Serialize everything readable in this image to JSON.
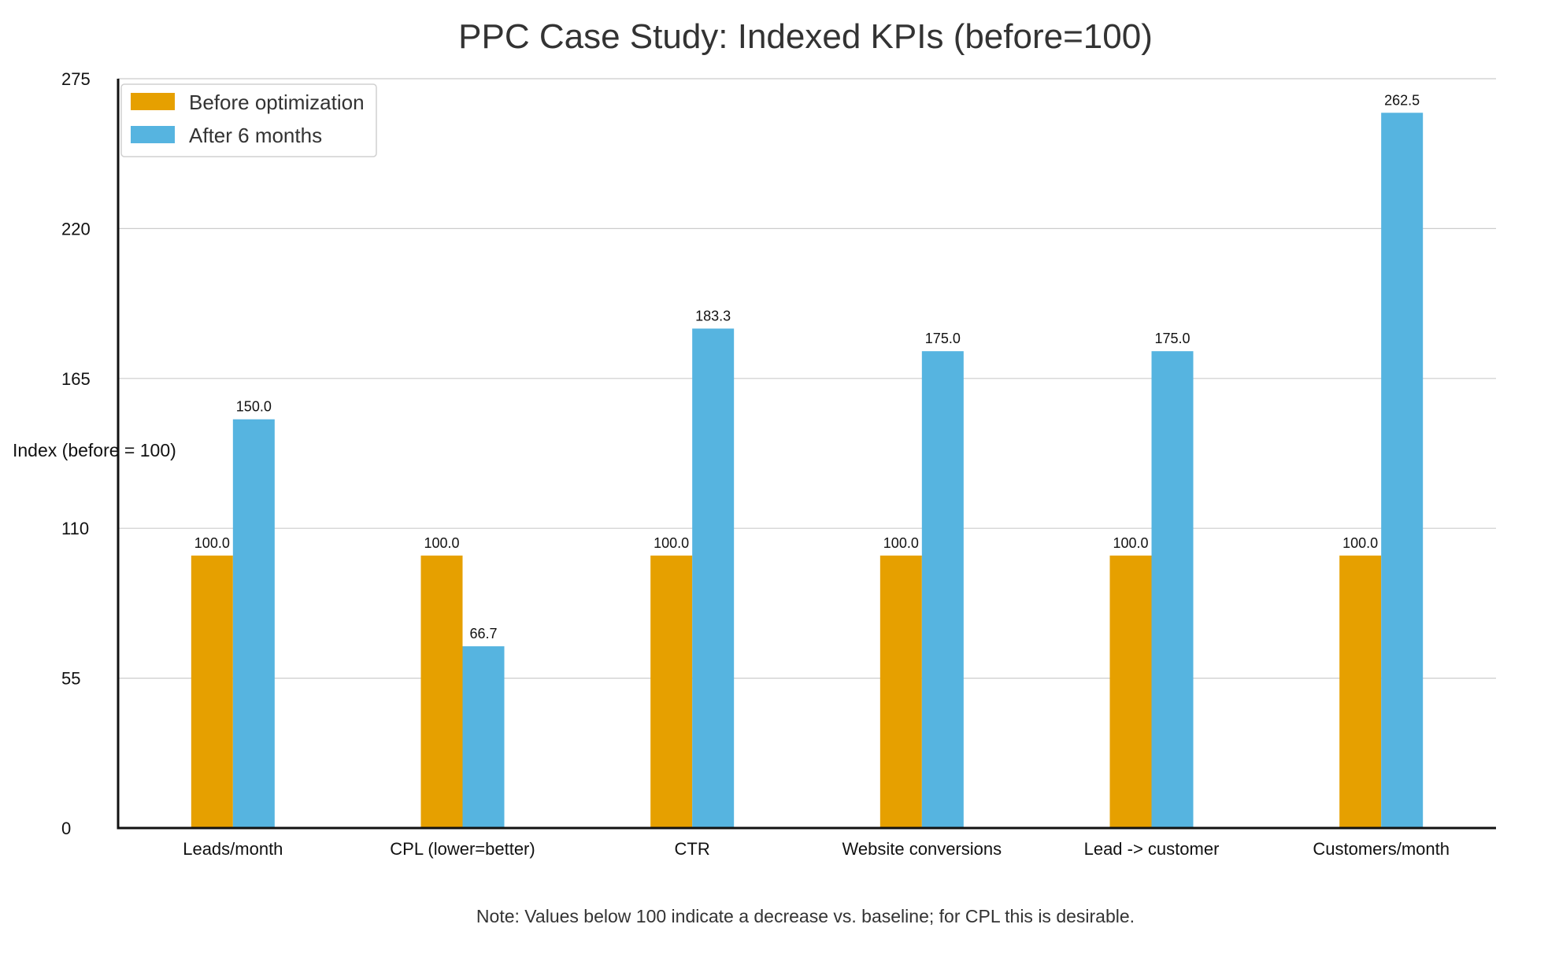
{
  "chart_data": {
    "type": "bar",
    "title": "PPC Case Study: Indexed KPIs (before=100)",
    "ylabel": "Index (before = 100)",
    "xlabel": "",
    "categories": [
      "Leads/month",
      "CPL (lower=better)",
      "CTR",
      "Website conversions",
      "Lead -> customer",
      "Customers/month"
    ],
    "series": [
      {
        "name": "Before optimization",
        "color": "#E6A000",
        "values": [
          100.0,
          100.0,
          100.0,
          100.0,
          100.0,
          100.0
        ],
        "labels": [
          "100.0",
          "100.0",
          "100.0",
          "100.0",
          "100.0",
          "100.0"
        ]
      },
      {
        "name": "After 6 months",
        "color": "#56B4E0",
        "values": [
          150.0,
          66.7,
          183.3,
          175.0,
          175.0,
          262.5
        ],
        "labels": [
          "150.0",
          "66.7",
          "183.3",
          "175.0",
          "175.0",
          "262.5"
        ]
      }
    ],
    "ylim": [
      0,
      275
    ],
    "yticks": [
      0,
      55,
      110,
      165,
      220,
      275
    ],
    "ytick_labels": [
      "0",
      "55",
      "110",
      "165",
      "220",
      "275"
    ],
    "grid": true,
    "legend_position": "top-left",
    "note": "Note: Values below 100 indicate a decrease vs. baseline; for CPL this is desirable."
  }
}
